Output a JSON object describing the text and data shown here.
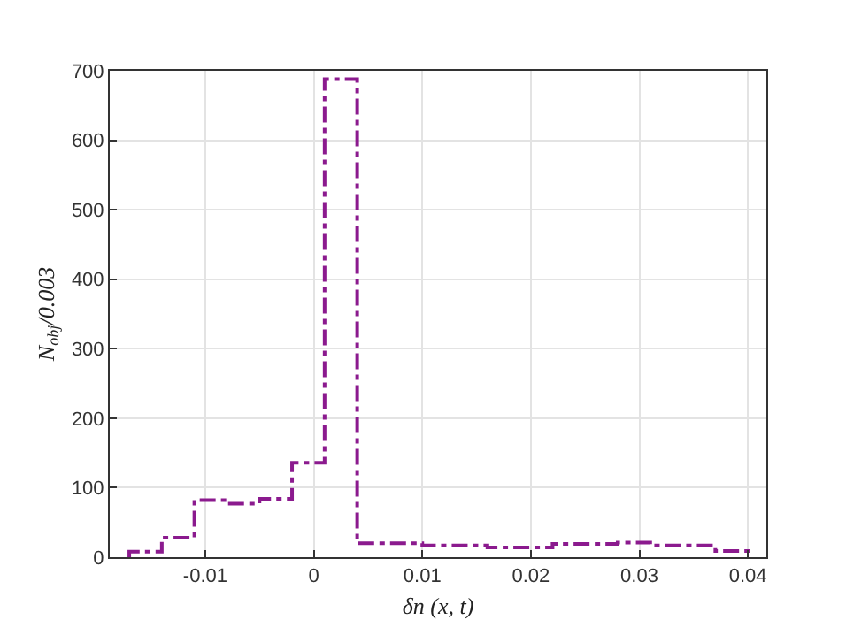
{
  "chart_data": {
    "type": "histogram",
    "xlabel": "δn (x, t)",
    "ylabel": "N$_{obj}$/0.003",
    "bins": [
      -0.017,
      -0.014,
      -0.011,
      -0.008,
      -0.005,
      -0.002,
      0.001,
      0.004,
      0.007,
      0.01,
      0.013,
      0.016,
      0.019,
      0.022,
      0.025,
      0.028,
      0.031,
      0.034,
      0.037,
      0.04
    ],
    "values": [
      8,
      28,
      82,
      77,
      84,
      136,
      688,
      20,
      20,
      17,
      17,
      14,
      14,
      19,
      19,
      21,
      17,
      17,
      9
    ],
    "color": "#8b1a8e",
    "line_style": "dashed",
    "xlim": [
      -0.0188,
      0.0417
    ],
    "xticks": [
      {
        "value": -0.01,
        "label": "-0.01"
      },
      {
        "value": 0,
        "label": "0"
      },
      {
        "value": 0.01,
        "label": "0.01"
      },
      {
        "value": 0.02,
        "label": "0.02"
      },
      {
        "value": 0.03,
        "label": "0.03"
      },
      {
        "value": 0.04,
        "label": "0.04"
      }
    ],
    "ylim": [
      0,
      700
    ],
    "yticks": [
      0,
      100,
      200,
      300,
      400,
      500,
      600,
      700
    ],
    "grid": true
  }
}
